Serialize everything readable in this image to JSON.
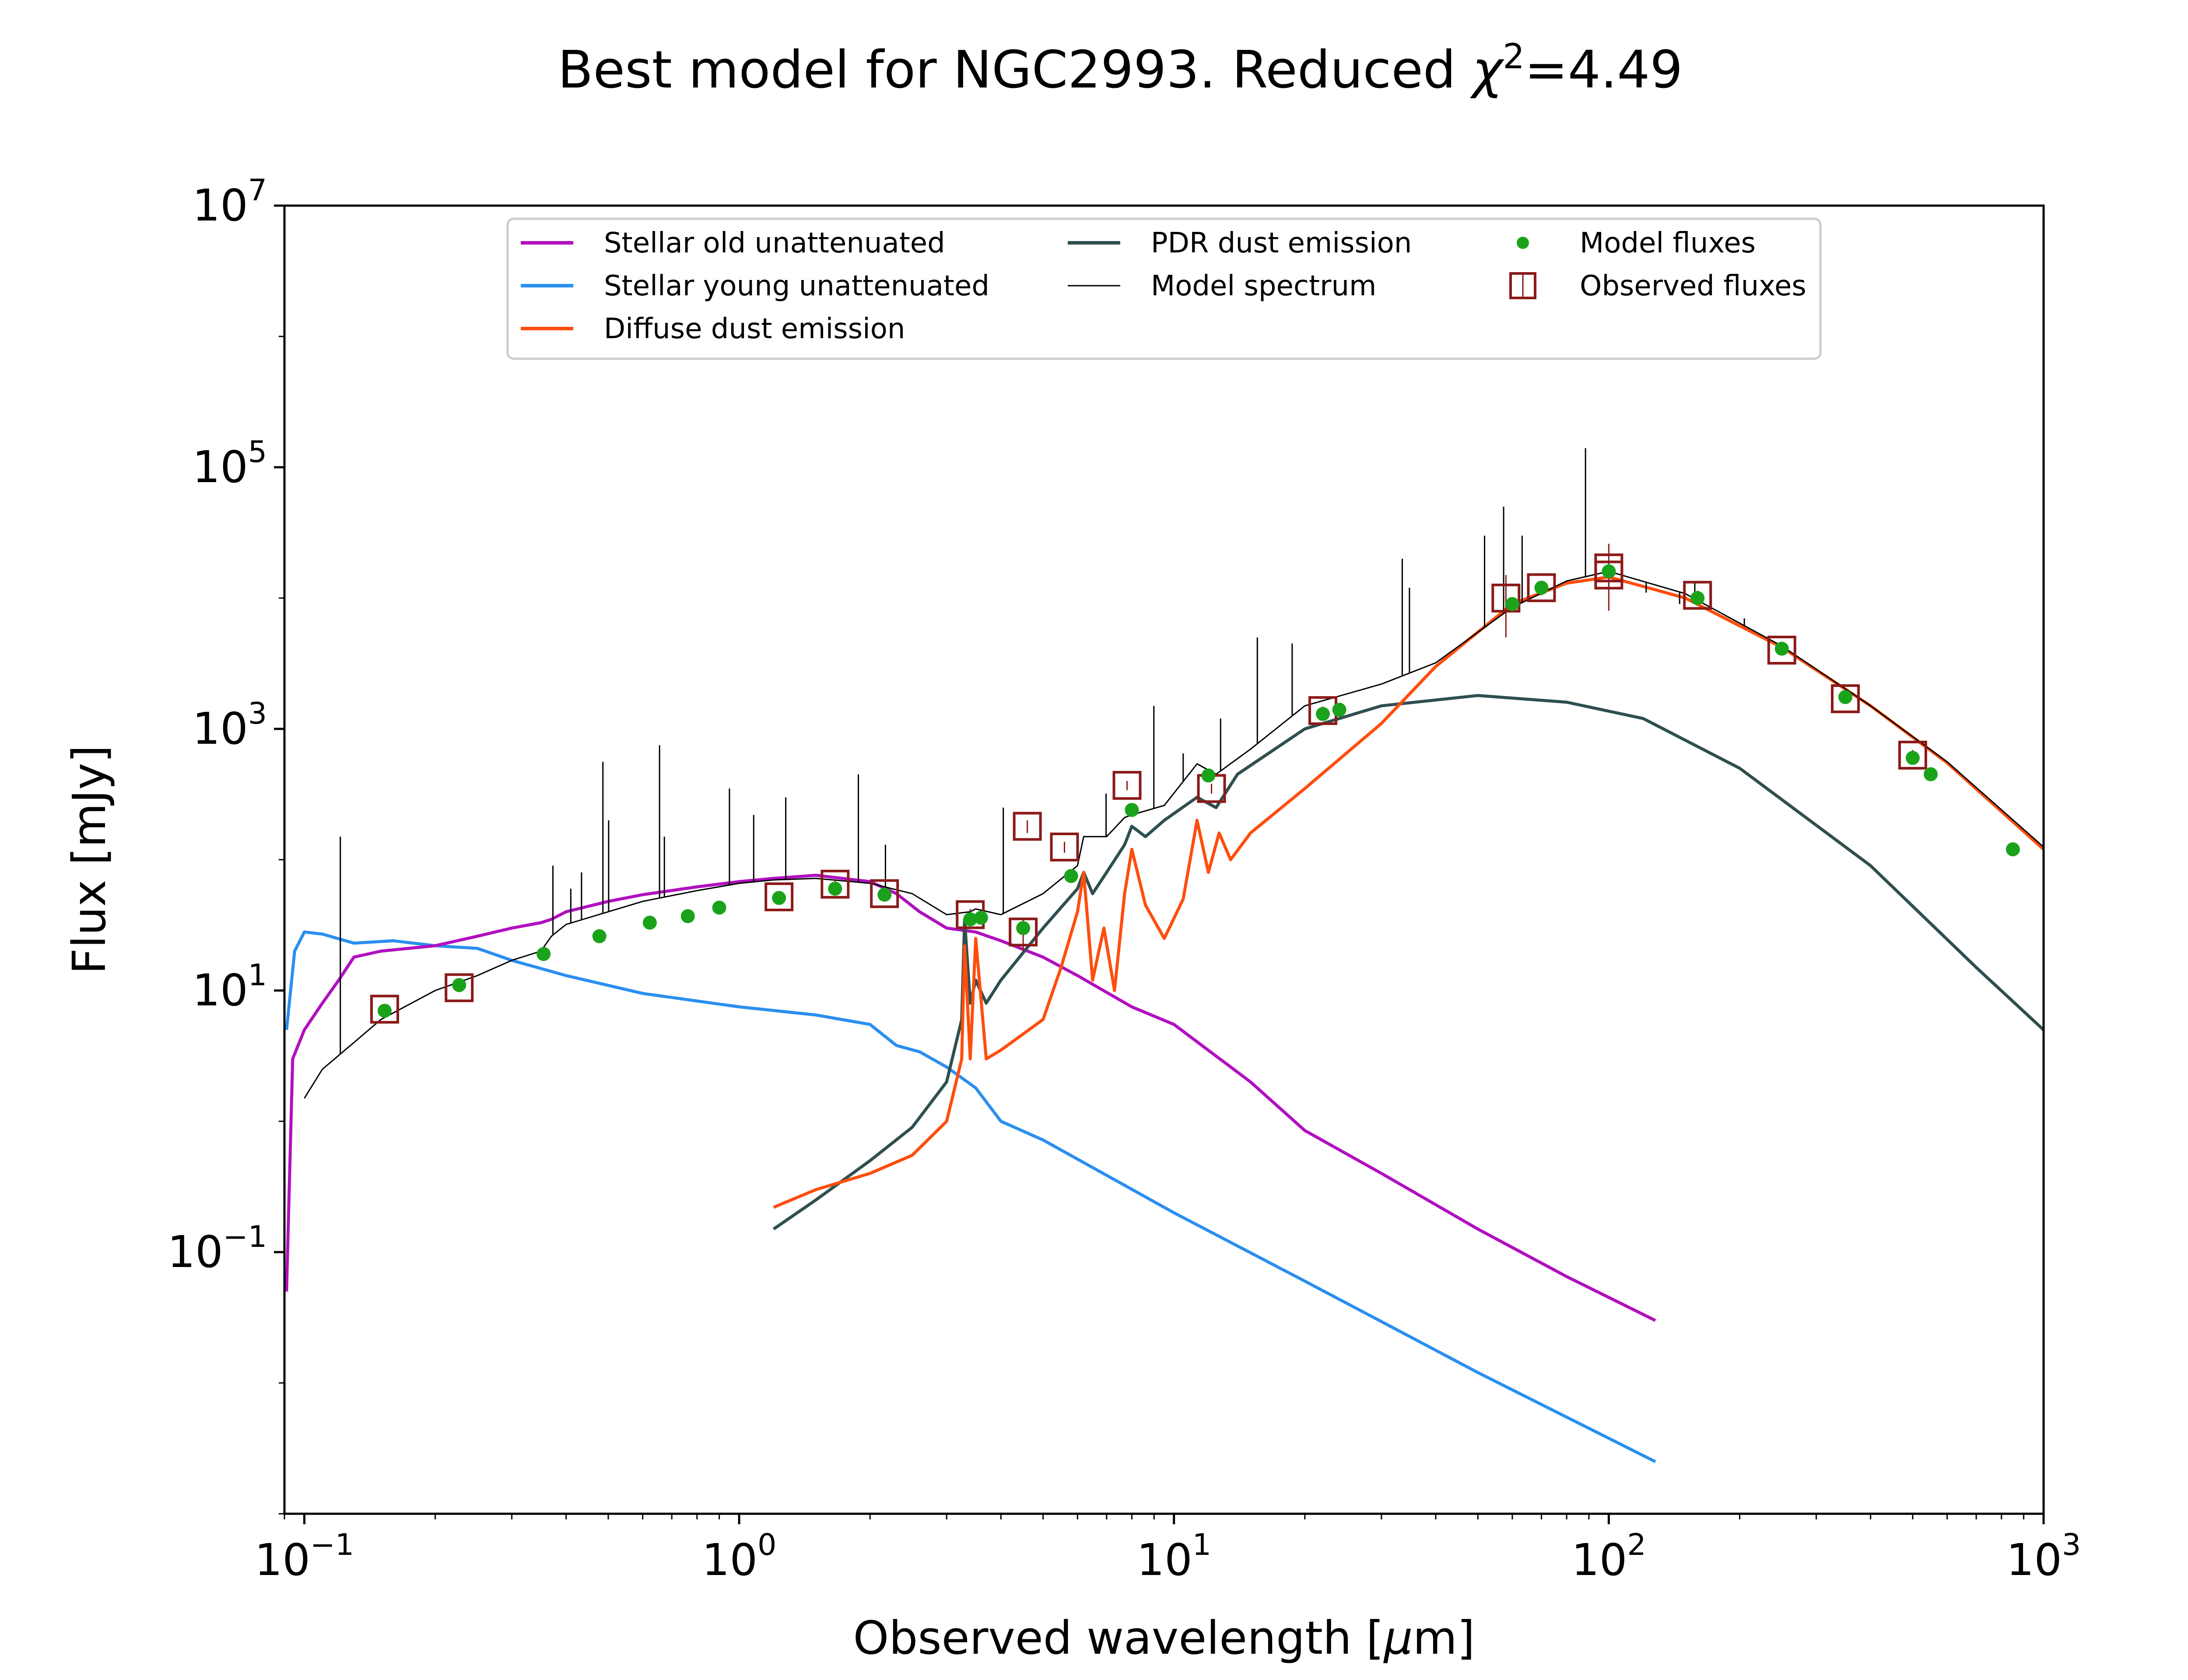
{
  "colors": {
    "stellar_old": "#b10fc0",
    "stellar_young": "#2a8ff0",
    "diffuse_dust": "#ff4d0d",
    "pdr_dust": "#2f4f4f",
    "model_spectrum": "#000000",
    "model_fluxes": "#1aa31a",
    "observed_fluxes": "#8b1a1a"
  },
  "chart_data": {
    "type": "line",
    "title": "Best model for NGC2993. Reduced",
    "title_chi": "χ",
    "title_chi_exp": "2",
    "title_value": "=4.49",
    "xlabel_text": "Observed wavelength [",
    "xlabel_mu": "μ",
    "xlabel_unit": "m]",
    "ylabel": "Flux [mJy]",
    "xscale": "log",
    "yscale": "log",
    "xlim": [
      0.09,
      1000
    ],
    "ylim": [
      0.001,
      10000000
    ],
    "grid": false,
    "legend_position": "top-center",
    "x_ticks": [
      {
        "value": 0.1,
        "base": "10",
        "exp": "−1"
      },
      {
        "value": 1,
        "base": "10",
        "exp": "0"
      },
      {
        "value": 10,
        "base": "10",
        "exp": "1"
      },
      {
        "value": 100,
        "base": "10",
        "exp": "2"
      },
      {
        "value": 1000,
        "base": "10",
        "exp": "3"
      }
    ],
    "y_ticks": [
      {
        "value": 0.1,
        "base": "10",
        "exp": "−1"
      },
      {
        "value": 10,
        "base": "10",
        "exp": "1"
      },
      {
        "value": 1000,
        "base": "10",
        "exp": "3"
      },
      {
        "value": 100000,
        "base": "10",
        "exp": "5"
      },
      {
        "value": 10000000,
        "base": "10",
        "exp": "7"
      }
    ],
    "legend": [
      {
        "key": "stellar_old",
        "label": "Stellar old unattenuated",
        "kind": "line"
      },
      {
        "key": "stellar_young",
        "label": "Stellar young unattenuated",
        "kind": "line"
      },
      {
        "key": "diffuse_dust",
        "label": "Diffuse dust emission",
        "kind": "line"
      },
      {
        "key": "pdr_dust",
        "label": "PDR dust emission",
        "kind": "line"
      },
      {
        "key": "model_spectrum",
        "label": "Model spectrum",
        "kind": "thinline"
      },
      {
        "key": "model_fluxes",
        "label": "Model fluxes",
        "kind": "dot"
      },
      {
        "key": "observed_fluxes",
        "label": "Observed fluxes",
        "kind": "square"
      }
    ],
    "series": [
      {
        "key": "stellar_old",
        "x": [
          0.091,
          0.094,
          0.1,
          0.11,
          0.12,
          0.13,
          0.15,
          0.2,
          0.25,
          0.3,
          0.35,
          0.37,
          0.4,
          0.5,
          0.6,
          0.8,
          1.0,
          1.2,
          1.5,
          2.0,
          2.3,
          2.6,
          3.0,
          3.5,
          4.0,
          5,
          6,
          8,
          10,
          15,
          20,
          30,
          50,
          80,
          128
        ],
        "y": [
          0.05,
          3,
          5,
          8,
          12,
          18,
          20,
          22,
          26,
          30,
          33,
          35,
          40,
          48,
          54,
          62,
          68,
          72,
          76,
          68,
          55,
          40,
          30,
          28,
          24,
          18,
          13,
          7.5,
          5.5,
          2,
          0.85,
          0.4,
          0.15,
          0.065,
          0.03
        ]
      },
      {
        "key": "stellar_young",
        "x": [
          0.091,
          0.095,
          0.1,
          0.11,
          0.13,
          0.16,
          0.2,
          0.25,
          0.3,
          0.4,
          0.6,
          1.0,
          1.5,
          2.0,
          2.3,
          2.6,
          3.0,
          3.5,
          4.0,
          5,
          10,
          20,
          50,
          128
        ],
        "y": [
          5,
          20,
          28,
          27,
          23,
          24,
          22,
          21,
          17,
          13,
          9.5,
          7.5,
          6.5,
          5.5,
          3.8,
          3.4,
          2.6,
          1.8,
          1.0,
          0.72,
          0.2,
          0.06,
          0.012,
          0.0025
        ]
      },
      {
        "key": "diffuse_dust",
        "x": [
          1.2,
          1.5,
          2,
          2.5,
          3.0,
          3.25,
          3.3,
          3.4,
          3.5,
          3.7,
          4,
          5,
          5.5,
          6.0,
          6.2,
          6.5,
          6.9,
          7.3,
          7.7,
          8.0,
          8.6,
          9.5,
          10.5,
          11.3,
          12,
          12.7,
          13.5,
          15,
          20,
          30,
          40,
          60,
          80,
          100,
          150,
          250,
          400,
          600,
          1000
        ],
        "y": [
          0.22,
          0.3,
          0.4,
          0.55,
          1,
          3,
          22,
          3,
          25,
          3,
          3.5,
          6,
          15,
          40,
          80,
          12,
          30,
          10,
          55,
          120,
          45,
          25,
          50,
          200,
          80,
          160,
          100,
          160,
          350,
          1100,
          3000,
          9000,
          13000,
          14500,
          10000,
          4200,
          1500,
          550,
          120
        ]
      },
      {
        "key": "pdr_dust",
        "x": [
          1.2,
          1.5,
          2,
          2.5,
          3.0,
          3.25,
          3.3,
          3.4,
          3.5,
          3.7,
          4,
          5,
          6,
          6.2,
          6.5,
          7,
          7.7,
          8.0,
          8.6,
          9.5,
          11.3,
          12.5,
          14,
          20,
          30,
          50,
          80,
          120,
          200,
          400,
          700,
          1000
        ],
        "y": [
          0.15,
          0.25,
          0.5,
          0.9,
          2,
          6,
          35,
          8,
          12,
          8,
          12,
          30,
          60,
          80,
          55,
          80,
          130,
          180,
          150,
          200,
          300,
          250,
          450,
          1000,
          1500,
          1800,
          1600,
          1200,
          500,
          90,
          15,
          5
        ]
      },
      {
        "key": "model_spectrum",
        "x": [
          0.1,
          0.11,
          0.13,
          0.15,
          0.2,
          0.25,
          0.3,
          0.35,
          0.37,
          0.4,
          0.5,
          0.6,
          0.8,
          1.0,
          1.2,
          1.5,
          2.0,
          2.5,
          3.0,
          3.4,
          3.5,
          4,
          5,
          6,
          6.2,
          7,
          7.7,
          8.0,
          9.5,
          11.3,
          12.5,
          15,
          20,
          30,
          40,
          60,
          80,
          100,
          150,
          250,
          400,
          600,
          1000
        ],
        "y": [
          1.5,
          2.5,
          4,
          6,
          10,
          13,
          17,
          20,
          26,
          32,
          40,
          48,
          58,
          66,
          70,
          72,
          66,
          55,
          38,
          40,
          42,
          38,
          55,
          90,
          150,
          150,
          210,
          220,
          260,
          540,
          450,
          700,
          1500,
          2200,
          3200,
          8500,
          13500,
          16000,
          10800,
          4300,
          1500,
          560,
          125
        ]
      }
    ],
    "spectrum_lines": [
      {
        "x": 0.121,
        "y": 150
      },
      {
        "x": 0.373,
        "y": 90
      },
      {
        "x": 0.41,
        "y": 60
      },
      {
        "x": 0.434,
        "y": 80
      },
      {
        "x": 0.486,
        "y": 560
      },
      {
        "x": 0.501,
        "y": 200
      },
      {
        "x": 0.656,
        "y": 750
      },
      {
        "x": 0.673,
        "y": 150
      },
      {
        "x": 0.95,
        "y": 350
      },
      {
        "x": 1.08,
        "y": 220
      },
      {
        "x": 1.28,
        "y": 300
      },
      {
        "x": 1.88,
        "y": 450
      },
      {
        "x": 2.17,
        "y": 130
      },
      {
        "x": 4.05,
        "y": 250
      },
      {
        "x": 6.98,
        "y": 320
      },
      {
        "x": 8.99,
        "y": 1500
      },
      {
        "x": 10.5,
        "y": 650
      },
      {
        "x": 12.8,
        "y": 1200
      },
      {
        "x": 15.55,
        "y": 5000
      },
      {
        "x": 18.7,
        "y": 4500
      },
      {
        "x": 33.5,
        "y": 20000
      },
      {
        "x": 34.8,
        "y": 12000
      },
      {
        "x": 51.8,
        "y": 30000
      },
      {
        "x": 57.3,
        "y": 50000
      },
      {
        "x": 63.2,
        "y": 30000
      },
      {
        "x": 88.4,
        "y": 140000
      },
      {
        "x": 121.9,
        "y": 11000
      },
      {
        "x": 145.5,
        "y": 9000
      },
      {
        "x": 157.7,
        "y": 13000
      },
      {
        "x": 205,
        "y": 7000
      }
    ],
    "model_fluxes": {
      "x": [
        0.153,
        0.227,
        0.355,
        0.477,
        0.623,
        0.762,
        0.9,
        1.235,
        1.662,
        2.159,
        3.4,
        3.6,
        4.5,
        5.8,
        8.0,
        12,
        22,
        24,
        60,
        70,
        100,
        160,
        250,
        350,
        500,
        550,
        850
      ],
      "y": [
        7,
        11,
        19,
        26,
        33,
        37,
        43,
        51,
        60,
        54,
        35,
        36,
        30,
        75,
        240,
        440,
        1300,
        1400,
        9000,
        12000,
        16000,
        10000,
        4100,
        1750,
        600,
        450,
        120
      ]
    },
    "observed_fluxes": {
      "x": [
        0.153,
        0.227,
        1.235,
        1.662,
        2.159,
        3.4,
        4.5,
        4.6,
        5.6,
        7.8,
        12.2,
        22,
        58,
        70,
        100,
        100,
        160,
        250,
        350,
        500
      ],
      "y": [
        7.2,
        10.5,
        52,
        65,
        55,
        38,
        28,
        180,
        125,
        370,
        350,
        1380,
        10000,
        12000,
        17000,
        15000,
        10500,
        4000,
        1700,
        630
      ],
      "err": [
        0.5,
        0.8,
        4,
        5,
        4,
        4,
        8,
        20,
        12,
        30,
        30,
        100,
        5000,
        1500,
        9000,
        3000,
        900,
        350,
        150,
        60
      ]
    }
  }
}
